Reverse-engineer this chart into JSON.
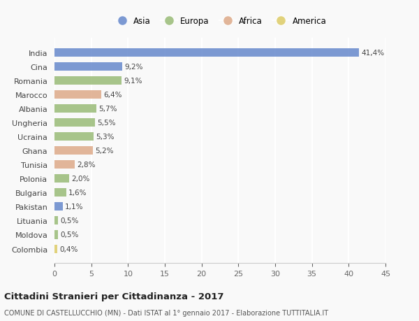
{
  "countries": [
    "India",
    "Cina",
    "Romania",
    "Marocco",
    "Albania",
    "Ungheria",
    "Ucraina",
    "Ghana",
    "Tunisia",
    "Polonia",
    "Bulgaria",
    "Pakistan",
    "Lituania",
    "Moldova",
    "Colombia"
  ],
  "values": [
    41.4,
    9.2,
    9.1,
    6.4,
    5.7,
    5.5,
    5.3,
    5.2,
    2.8,
    2.0,
    1.6,
    1.1,
    0.5,
    0.5,
    0.4
  ],
  "labels": [
    "41,4%",
    "9,2%",
    "9,1%",
    "6,4%",
    "5,7%",
    "5,5%",
    "5,3%",
    "5,2%",
    "2,8%",
    "2,0%",
    "1,6%",
    "1,1%",
    "0,5%",
    "0,5%",
    "0,4%"
  ],
  "continents": [
    "Asia",
    "Asia",
    "Europa",
    "Africa",
    "Europa",
    "Europa",
    "Europa",
    "Africa",
    "Africa",
    "Europa",
    "Europa",
    "Asia",
    "Europa",
    "Europa",
    "America"
  ],
  "colors": {
    "Asia": "#6688cc",
    "Europa": "#99bb77",
    "Africa": "#ddaa88",
    "America": "#ddcc66"
  },
  "legend_order": [
    "Asia",
    "Europa",
    "Africa",
    "America"
  ],
  "title": "Cittadini Stranieri per Cittadinanza - 2017",
  "subtitle": "COMUNE DI CASTELLUCCHIO (MN) - Dati ISTAT al 1° gennaio 2017 - Elaborazione TUTTITALIA.IT",
  "xlim": [
    0,
    45
  ],
  "xticks": [
    0,
    5,
    10,
    15,
    20,
    25,
    30,
    35,
    40,
    45
  ],
  "background_color": "#f9f9f9",
  "grid_color": "#ffffff",
  "bar_height": 0.6
}
